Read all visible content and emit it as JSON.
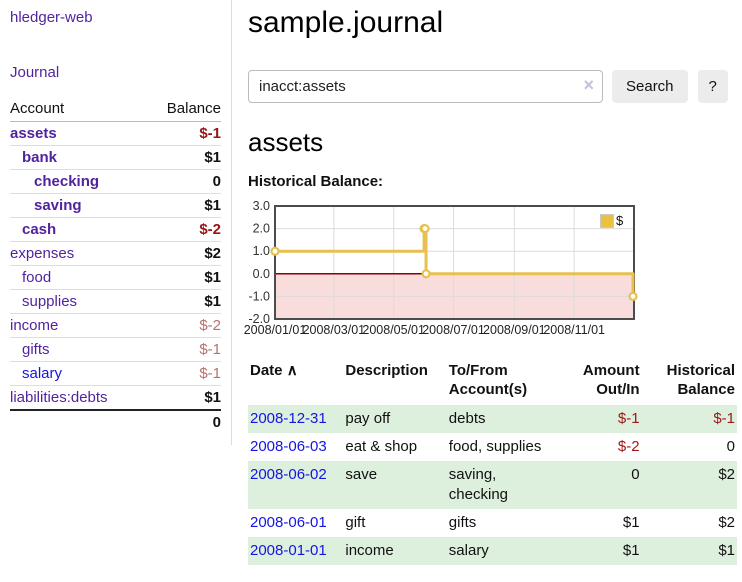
{
  "sidebar": {
    "brand": "hledger-web",
    "journal_link": "Journal",
    "account_header": "Account",
    "balance_header": "Balance",
    "rows": [
      {
        "name": "assets",
        "indent": 0,
        "bold": true,
        "color": "purple",
        "balance": "$-1",
        "balance_style": "neg-strong"
      },
      {
        "name": "bank",
        "indent": 1,
        "bold": true,
        "color": "purple",
        "balance": "$1",
        "balance_style": "pos-strong"
      },
      {
        "name": "checking",
        "indent": 2,
        "bold": true,
        "color": "purple",
        "balance": "0",
        "balance_style": "pos-strong"
      },
      {
        "name": "saving",
        "indent": 2,
        "bold": true,
        "color": "purple",
        "balance": "$1",
        "balance_style": "pos-strong"
      },
      {
        "name": "cash",
        "indent": 1,
        "bold": true,
        "color": "purple",
        "balance": "$-2",
        "balance_style": "neg-strong"
      },
      {
        "name": "expenses",
        "indent": 0,
        "bold": false,
        "color": "purple",
        "balance": "$2",
        "balance_style": "pos-strong"
      },
      {
        "name": "food",
        "indent": 1,
        "bold": false,
        "color": "purple",
        "balance": "$1",
        "balance_style": "pos-strong"
      },
      {
        "name": "supplies",
        "indent": 1,
        "bold": false,
        "color": "purple",
        "balance": "$1",
        "balance_style": "pos-strong"
      },
      {
        "name": "income",
        "indent": 0,
        "bold": false,
        "color": "purple",
        "balance": "$-2",
        "balance_style": "neg-muted"
      },
      {
        "name": "gifts",
        "indent": 1,
        "bold": false,
        "color": "purple",
        "balance": "$-1",
        "balance_style": "neg-muted"
      },
      {
        "name": "salary",
        "indent": 1,
        "bold": false,
        "color": "blue",
        "balance": "$-1",
        "balance_style": "neg-muted"
      },
      {
        "name": "liabilities:debts",
        "indent": 0,
        "bold": false,
        "color": "purple",
        "balance": "$1",
        "balance_style": "pos-strong"
      }
    ],
    "total": "0"
  },
  "main": {
    "title": "sample.journal",
    "search": {
      "value": "inacct:assets",
      "clear_icon": "×",
      "button": "Search",
      "help_button": "?"
    },
    "account_heading": "assets",
    "chart_heading": "Historical Balance:"
  },
  "chart_data": {
    "type": "line",
    "title": "Historical Balance",
    "step": "post",
    "legend": [
      {
        "label": "$",
        "color": "#e9c23f"
      }
    ],
    "x_domain": [
      "2008-01-01",
      "2009-01-01"
    ],
    "points": [
      {
        "date": "2008-01-01",
        "value": 1
      },
      {
        "date": "2008-06-01",
        "value": 2
      },
      {
        "date": "2008-06-02",
        "value": 2
      },
      {
        "date": "2008-06-03",
        "value": 0
      },
      {
        "date": "2008-12-31",
        "value": -1
      }
    ],
    "ylim": [
      -2,
      3
    ],
    "yticks": [
      "3.0",
      "2.0",
      "1.0",
      "0.0",
      "-1.0",
      "-2.0"
    ],
    "ytick_values": [
      3,
      2,
      1,
      0,
      -1,
      -2
    ],
    "xticks": [
      {
        "label": "2008/01/01",
        "date": "2008-01-01"
      },
      {
        "label": "2008/03/01",
        "date": "2008-03-01"
      },
      {
        "label": "2008/05/01",
        "date": "2008-05-01"
      },
      {
        "label": "2008/07/01",
        "date": "2008-07-01"
      },
      {
        "label": "2008/09/01",
        "date": "2008-09-01"
      },
      {
        "label": "2008/11/01",
        "date": "2008-11-01"
      }
    ],
    "grid": true,
    "legend_position": "top-right",
    "line_color": "#e7c04f",
    "marker_fill": "#ffffff",
    "negative_fill": "#f9dcdc",
    "zero_line_color": "#8b0000"
  },
  "table": {
    "headers": {
      "date": "Date",
      "sort_indicator": "∧",
      "description": "Description",
      "accounts": "To/From Account(s)",
      "amount": "Amount Out/In",
      "balance": "Historical Balance"
    },
    "rows": [
      {
        "date": "2008-12-31",
        "description": "pay off",
        "accounts": "debts",
        "amount": "$-1",
        "amount_negative": true,
        "balance": "$-1",
        "balance_negative": true
      },
      {
        "date": "2008-06-03",
        "description": "eat & shop",
        "accounts": "food, supplies",
        "amount": "$-2",
        "amount_negative": true,
        "balance": "0",
        "balance_negative": false
      },
      {
        "date": "2008-06-02",
        "description": "save",
        "accounts": "saving, checking",
        "amount": "0",
        "amount_negative": false,
        "balance": "$2",
        "balance_negative": false
      },
      {
        "date": "2008-06-01",
        "description": "gift",
        "accounts": "gifts",
        "amount": "$1",
        "amount_negative": false,
        "balance": "$2",
        "balance_negative": false
      },
      {
        "date": "2008-01-01",
        "description": "income",
        "accounts": "salary",
        "amount": "$1",
        "amount_negative": false,
        "balance": "$1",
        "balance_negative": false
      }
    ]
  },
  "colors": {
    "link_purple": "#52239e",
    "link_blue": "#1515e0",
    "negative_strong": "#991414",
    "negative_muted": "#b5726f",
    "row_stripe_green": "#ddefdd",
    "chart_line_gold": "#e7c04f",
    "chart_negative_pink": "#f9dcdc",
    "chart_zero_red": "#8b0000"
  }
}
